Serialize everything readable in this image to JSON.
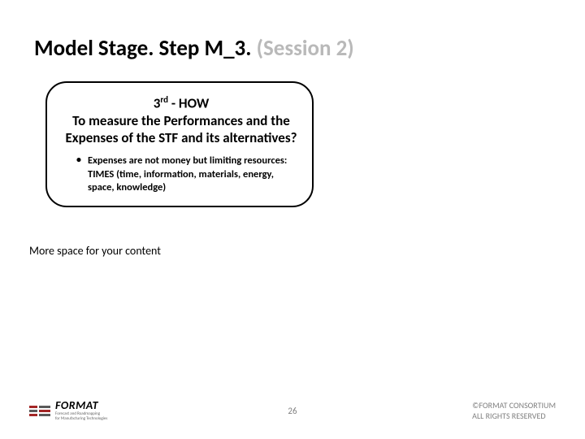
{
  "title": {
    "main": "Model Stage. Step M_3. ",
    "deemph": "(Session 2)"
  },
  "box": {
    "heading_prefix": "3",
    "heading_sup": "rd",
    "heading_dash_how": " - HOW",
    "heading_body": "To measure the Performances and the Expenses of the STF and its alternatives?",
    "bullet1": "Expenses are not money but limiting resources: TIMES (time, information, materials, energy, space, knowledge)"
  },
  "more_space": "More space for your content",
  "footer": {
    "logo_word": "FORMAT",
    "logo_tagline1": "Forecast and Roadmapping",
    "logo_tagline2": "for Manufacturing Technologies",
    "logo_accent": "#a32626",
    "logo_dark": "#5a5a5a",
    "page_number": "26",
    "copyright_line1": "©FORMAT CONSORTIUM",
    "copyright_line2": "ALL RIGHTS RESERVED"
  }
}
